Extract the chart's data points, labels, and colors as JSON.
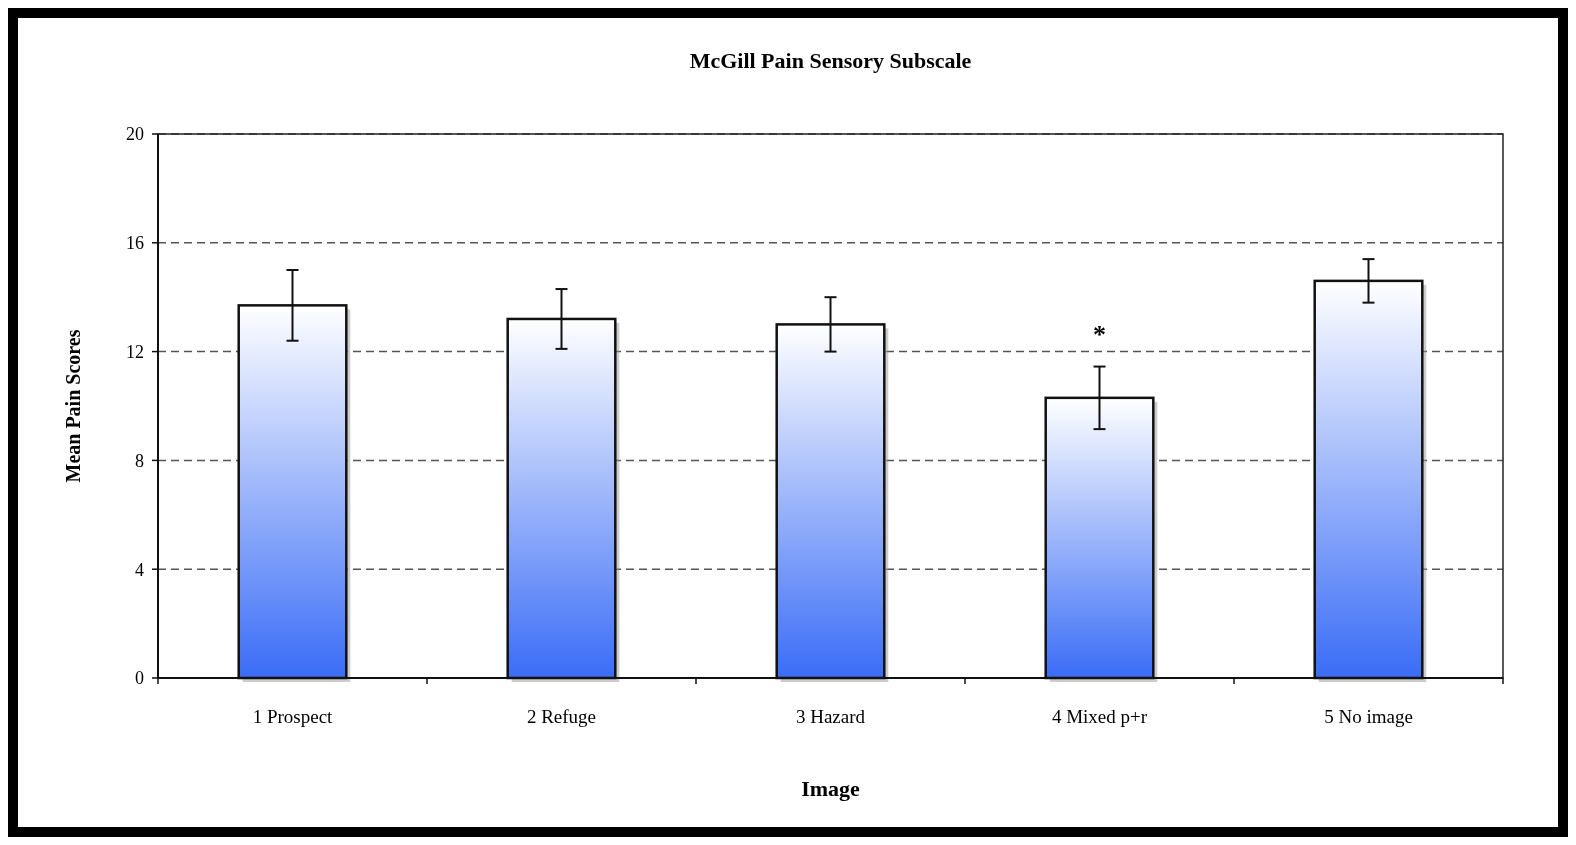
{
  "chart_data": {
    "type": "bar",
    "title": "McGill Pain Sensory Subscale",
    "xlabel": "Image",
    "ylabel": "Mean Pain Scores",
    "categories": [
      "1 Prospect",
      "2 Refuge",
      "3 Hazard",
      "4 Mixed p+r",
      "5 No image"
    ],
    "values": [
      13.7,
      13.2,
      13.0,
      10.3,
      14.6
    ],
    "errors": [
      1.3,
      1.1,
      1.0,
      1.15,
      0.8
    ],
    "color": "#3a6cf6",
    "ylim": [
      0,
      20
    ],
    "yticks": [
      0,
      4,
      8,
      12,
      16,
      20
    ],
    "grid": "y",
    "annotations": [
      {
        "text": "*",
        "x": "4 Mixed p+r",
        "y": 11.45
      }
    ]
  }
}
